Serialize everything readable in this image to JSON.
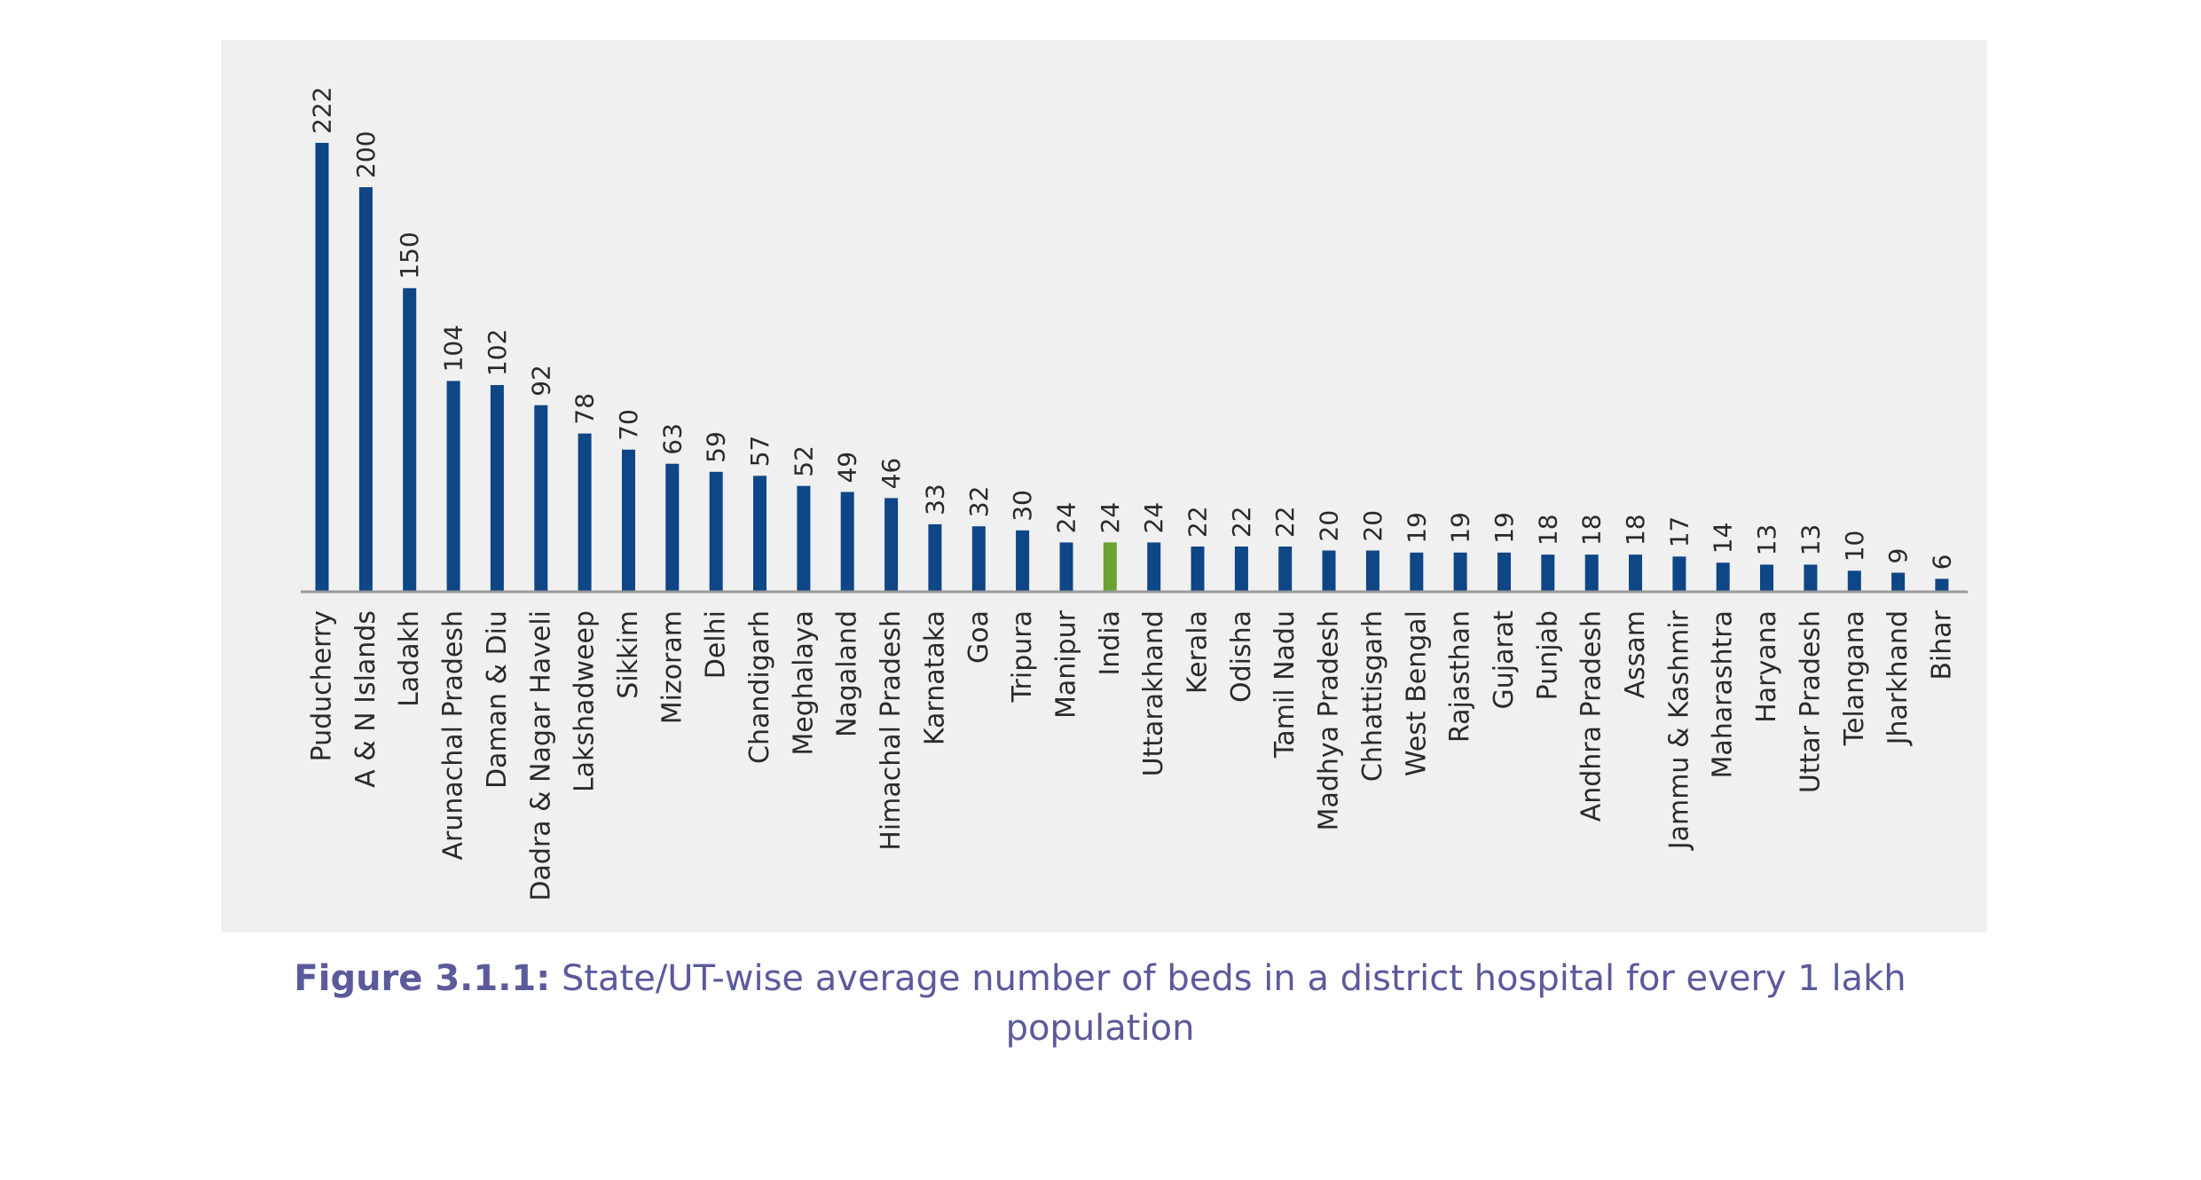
{
  "caption": {
    "label": "Figure 3.1.1:",
    "text": "State/UT-wise average number of beds in a district hospital for every 1 lakh population"
  },
  "colors": {
    "panel_background": "#f0f0f0",
    "bar_default": "#0e4686",
    "bar_highlight": "#6aa234",
    "caption_text": "#5a5a9c",
    "axis_line": "#9a9a9a"
  },
  "chart_data": {
    "type": "bar",
    "title": "",
    "xlabel": "",
    "ylabel": "",
    "ylim": [
      0,
      222
    ],
    "grid": false,
    "highlight_category": "India",
    "categories": [
      "Puducherry",
      "A & N Islands",
      "Ladakh",
      "Arunachal Pradesh",
      "Daman & Diu",
      "Dadra & Nagar Haveli",
      "Lakshadweep",
      "Sikkim",
      "Mizoram",
      "Delhi",
      "Chandigarh",
      "Meghalaya",
      "Nagaland",
      "Himachal Pradesh",
      "Karnataka",
      "Goa",
      "Tripura",
      "Manipur",
      "India",
      "Uttarakhand",
      "Kerala",
      "Odisha",
      "Tamil Nadu",
      "Madhya Pradesh",
      "Chhattisgarh",
      "West Bengal",
      "Rajasthan",
      "Gujarat",
      "Punjab",
      "Andhra Pradesh",
      "Assam",
      "Jammu & Kashmir",
      "Maharashtra",
      "Haryana",
      "Uttar Pradesh",
      "Telangana",
      "Jharkhand",
      "Bihar"
    ],
    "values": [
      222,
      200,
      150,
      104,
      102,
      92,
      78,
      70,
      63,
      59,
      57,
      52,
      49,
      46,
      33,
      32,
      30,
      24,
      24,
      24,
      22,
      22,
      22,
      20,
      20,
      19,
      19,
      19,
      18,
      18,
      18,
      17,
      14,
      13,
      13,
      10,
      9,
      6
    ],
    "data_labels": [
      "222",
      "200",
      "150",
      "104",
      "102",
      "92",
      "78",
      "70",
      "63",
      "59",
      "57",
      "52",
      "49",
      "46",
      "33",
      "32",
      "30",
      "24",
      "24",
      "24",
      "22",
      "22",
      "22",
      "20",
      "20",
      "19",
      "19",
      "19",
      "18",
      "18",
      "18",
      "17",
      "14",
      "13",
      "13",
      "10",
      "9",
      "6"
    ]
  }
}
